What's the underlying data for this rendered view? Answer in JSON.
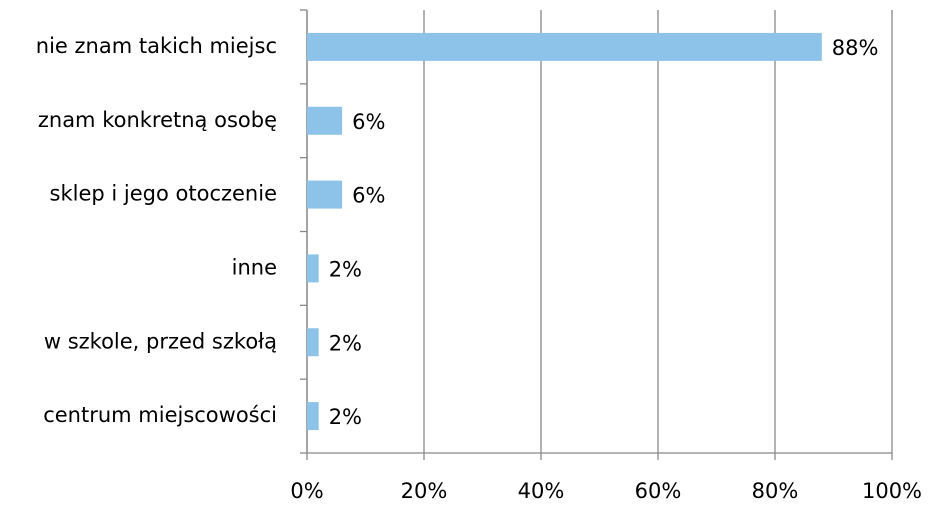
{
  "chart_data": {
    "type": "barh",
    "categories": [
      "nie znam takich miejsc",
      "znam konkretną osobę",
      "sklep i jego otoczenie",
      "inne",
      "w szkole, przed szkołą",
      "centrum miejscowości"
    ],
    "values": [
      88,
      6,
      6,
      2,
      2,
      2
    ],
    "value_labels": [
      "88%",
      "6%",
      "6%",
      "2%",
      "2%",
      "2%"
    ],
    "color": "#8dc3e8",
    "xlim": [
      0,
      100
    ],
    "xticks": [
      {
        "value": 0,
        "label": "0%"
      },
      {
        "value": 20,
        "label": "20%"
      },
      {
        "value": 40,
        "label": "40%"
      },
      {
        "value": 60,
        "label": "60%"
      },
      {
        "value": 80,
        "label": "80%"
      },
      {
        "value": 100,
        "label": "100%"
      }
    ],
    "grid": true
  }
}
